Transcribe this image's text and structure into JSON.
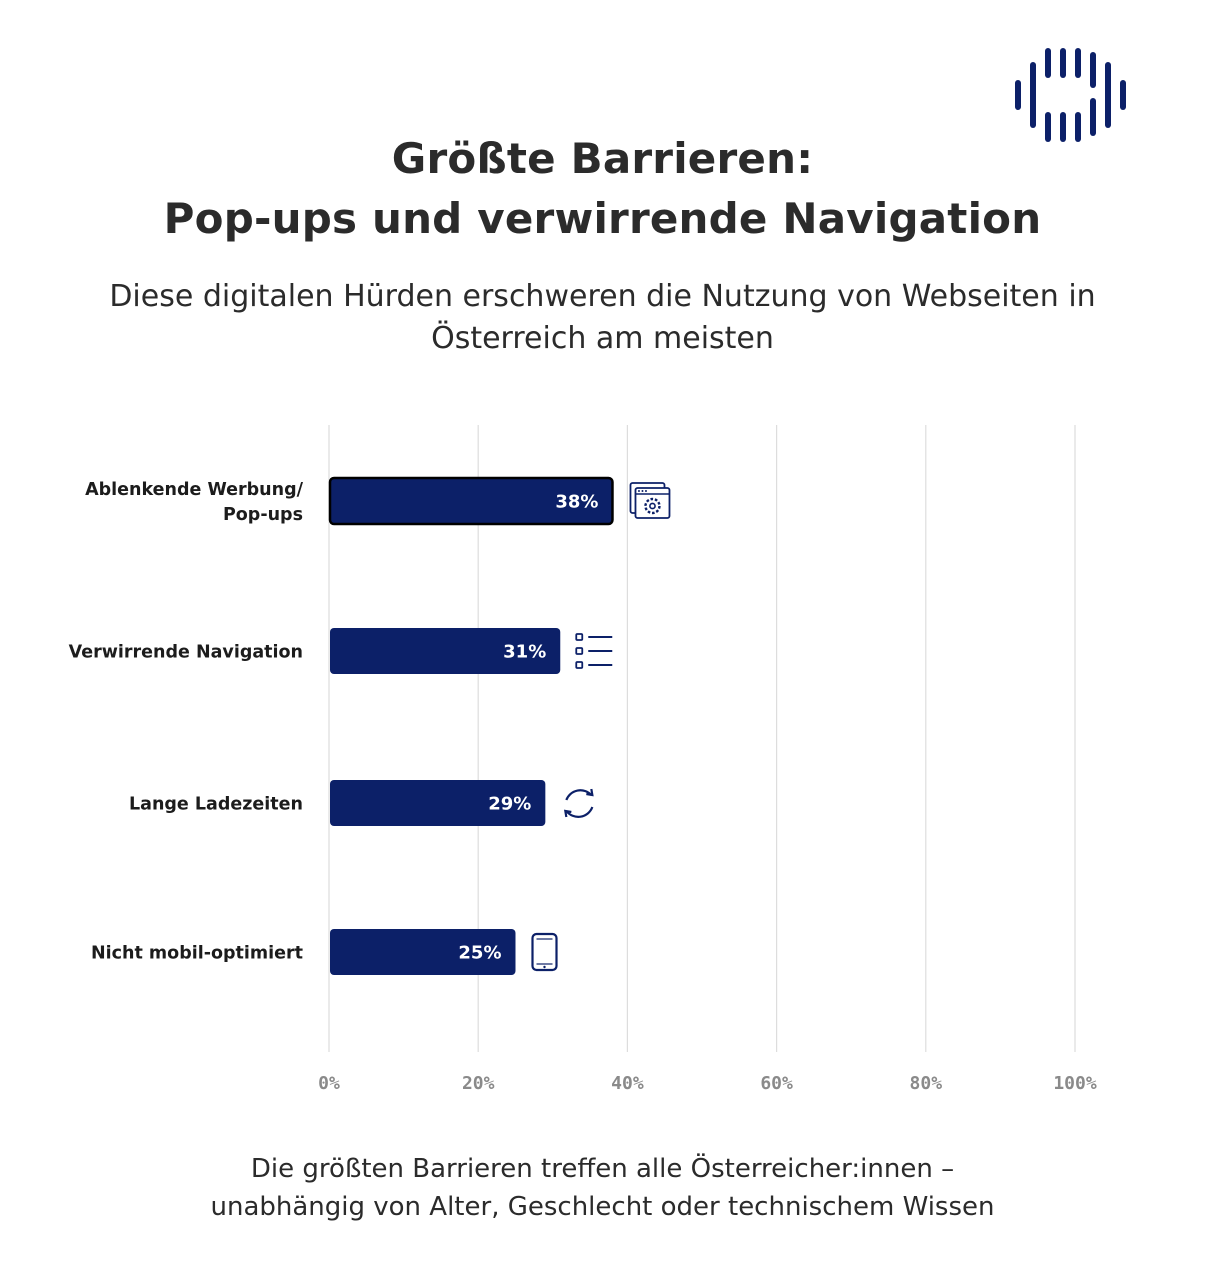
{
  "header": {
    "title_line1": "Größte Barrieren:",
    "title_line2": "Pop-ups und verwirrende Navigation",
    "subtitle": "Diese digitalen Hürden erschweren die Nutzung von Webseiten in Österreich am meisten"
  },
  "footer": {
    "line1": "Die größten Barrieren treffen alle Österreicher:innen –",
    "line2": "unabhängig von Alter, Geschlecht oder technischem Wissen"
  },
  "colors": {
    "bar": "#0c2068",
    "bar_outline": "#000000",
    "grid": "#dddddd",
    "brand": "#0c2068"
  },
  "chart_data": {
    "type": "bar",
    "orientation": "horizontal",
    "categories": [
      "Ablenkende Werbung/ Pop-ups",
      "Verwirrende Navigation",
      "Lange Ladezeiten",
      "Nicht mobil-optimiert"
    ],
    "category_lines": [
      [
        "Ablenkende Werbung/",
        "Pop-ups"
      ],
      [
        "Verwirrende Navigation"
      ],
      [
        "Lange Ladezeiten"
      ],
      [
        "Nicht mobil-optimiert"
      ]
    ],
    "values": [
      38,
      31,
      29,
      25
    ],
    "value_labels": [
      "38%",
      "31%",
      "29%",
      "25%"
    ],
    "icons": [
      "browser-settings-icon",
      "list-icon",
      "refresh-icon",
      "mobile-phone-icon"
    ],
    "xlim": [
      0,
      100
    ],
    "xticks": [
      0,
      20,
      40,
      60,
      80,
      100
    ],
    "xtick_labels": [
      "0%",
      "20%",
      "40%",
      "60%",
      "80%",
      "100%"
    ],
    "grid": true,
    "legend": "none"
  }
}
